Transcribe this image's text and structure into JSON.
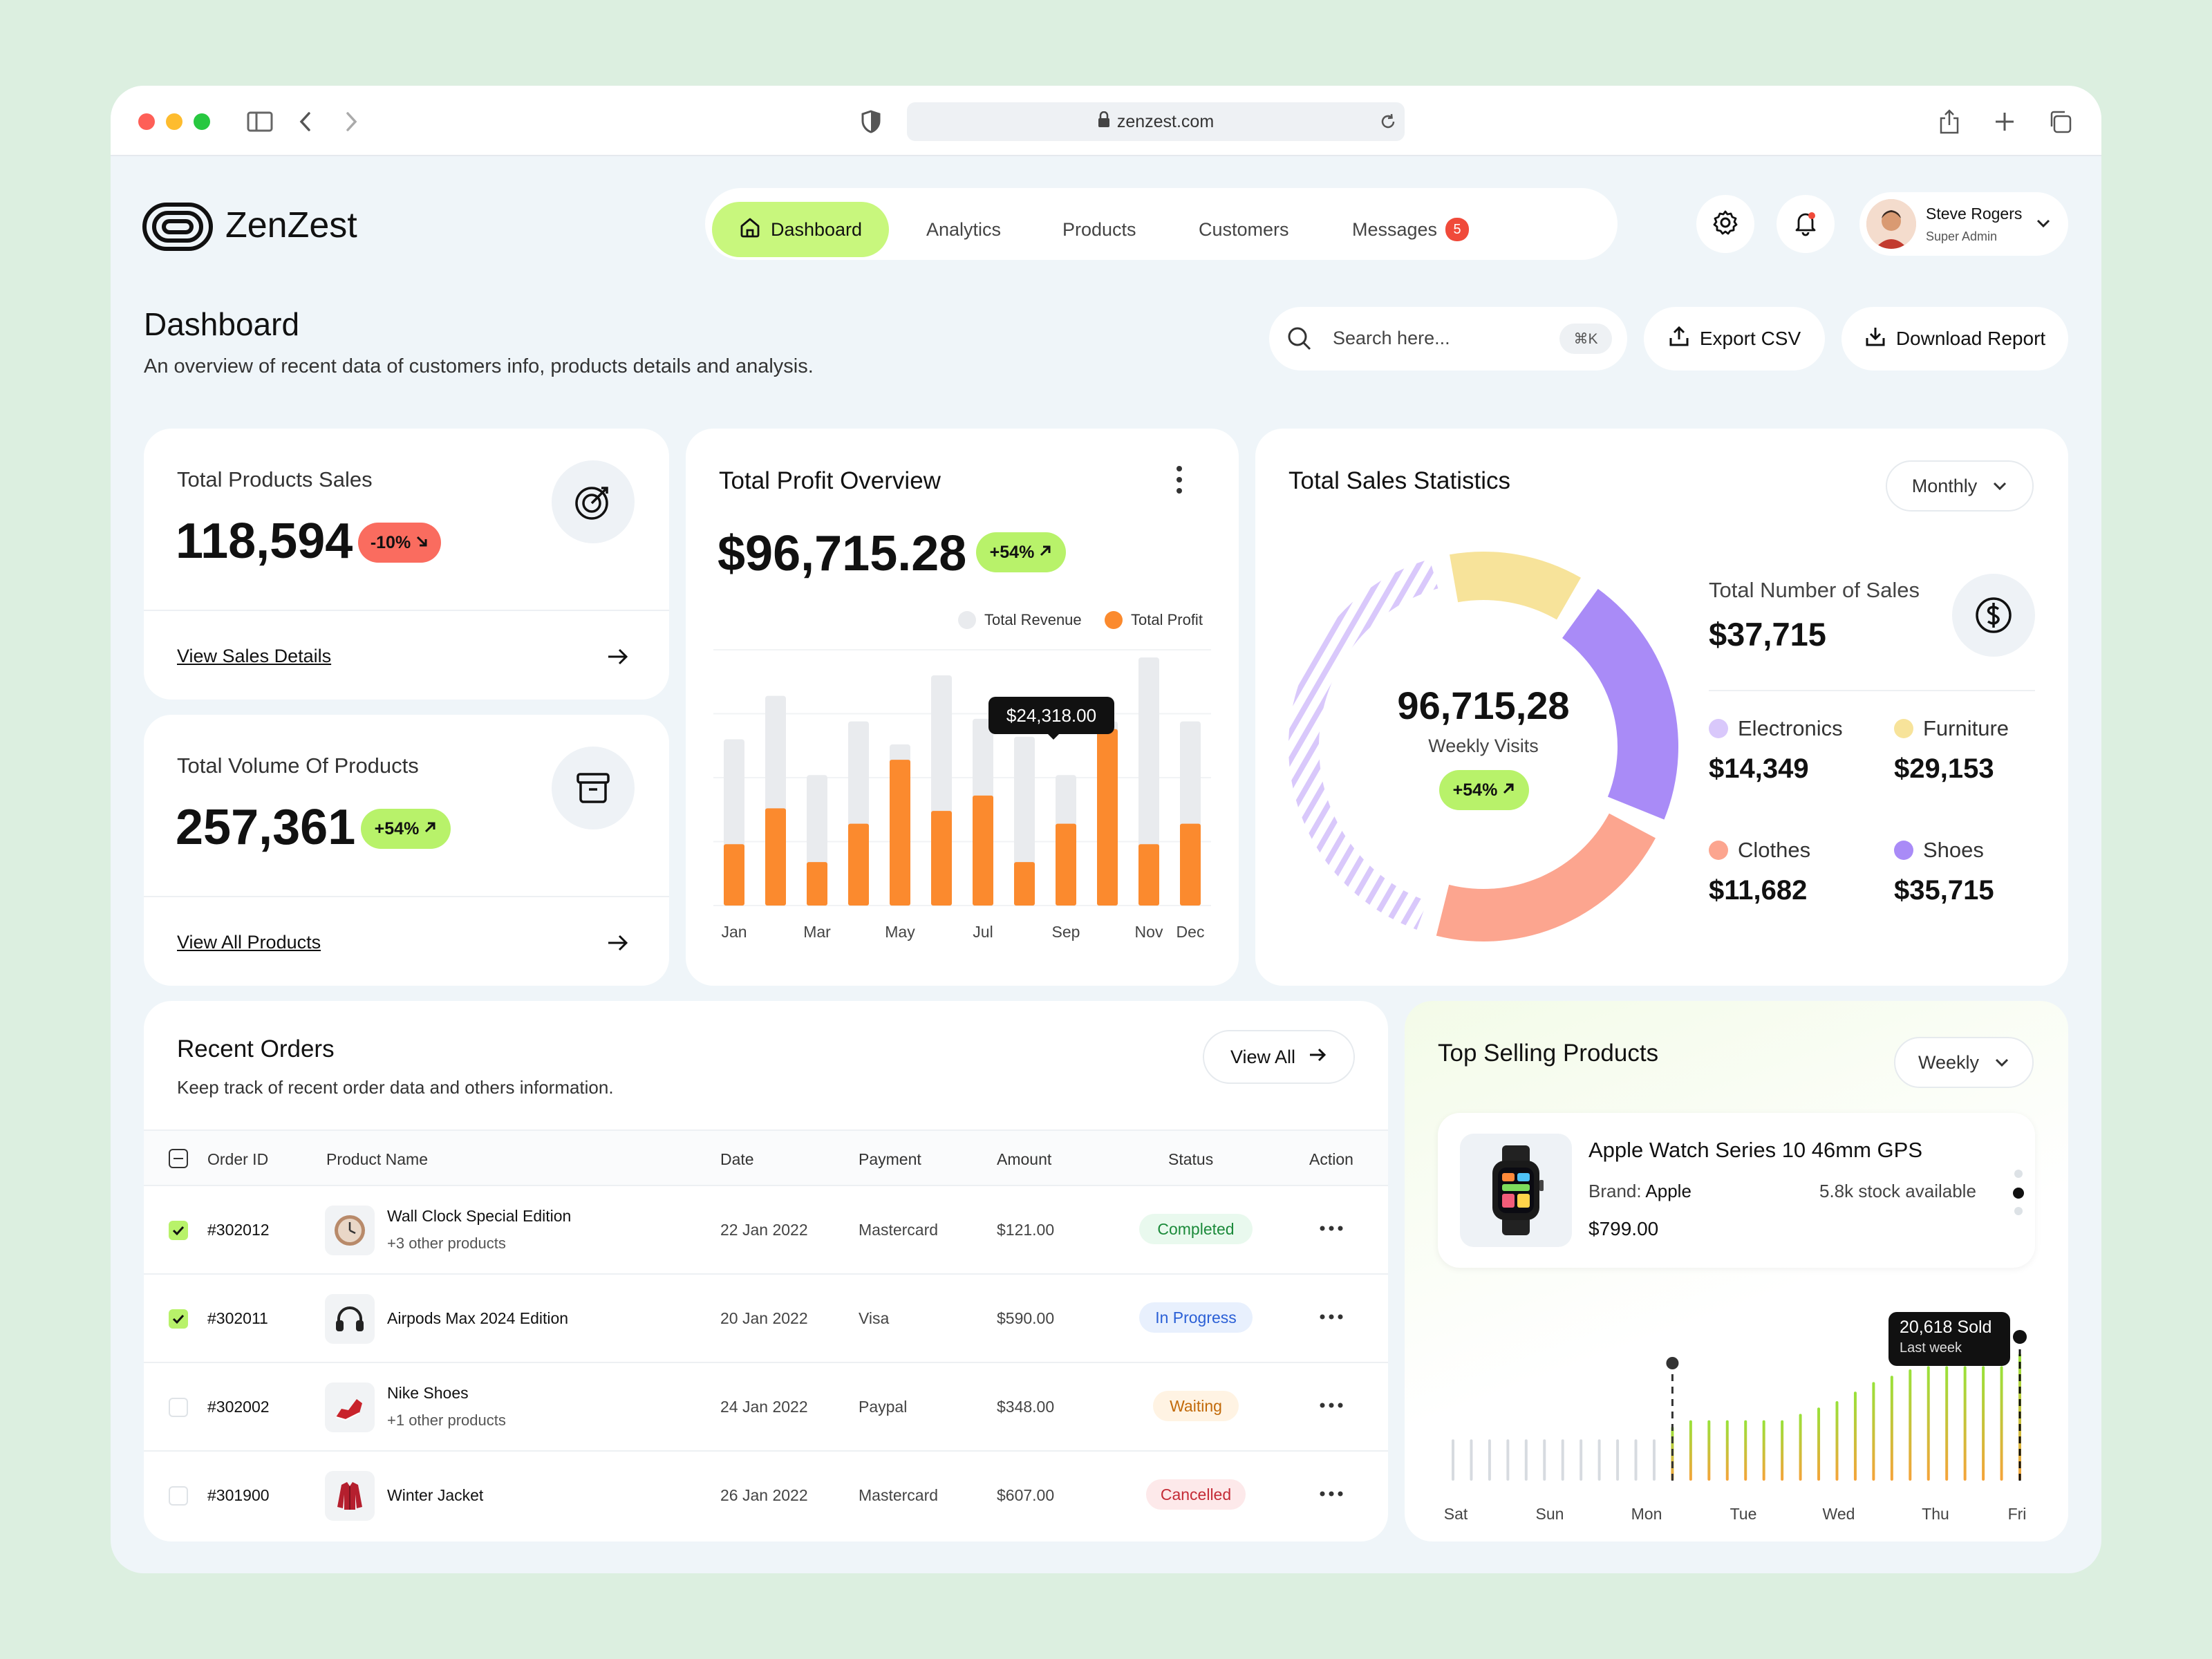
{
  "browser": {
    "url": "zenzest.com"
  },
  "app": {
    "brand": "ZenZest"
  },
  "nav": {
    "tabs": [
      "Dashboard",
      "Analytics",
      "Products",
      "Customers",
      "Messages"
    ],
    "messages_count": "5",
    "user_name": "Steve Rogers",
    "user_role": "Super Admin"
  },
  "header": {
    "title": "Dashboard",
    "subtitle": "An overview of recent data of customers info, products details and analysis.",
    "search_placeholder": "Search here...",
    "search_shortcut": "⌘K",
    "export_label": "Export CSV",
    "download_label": "Download Report"
  },
  "sales_card": {
    "title": "Total Products Sales",
    "value": "118,594",
    "badge": "-10%",
    "link": "View Sales Details"
  },
  "volume_card": {
    "title": "Total Volume Of Products",
    "value": "257,361",
    "badge": "+54%",
    "link": "View All Products"
  },
  "profit": {
    "title": "Total Profit Overview",
    "value": "$96,715.28",
    "badge": "+54%",
    "legend_revenue": "Total Revenue",
    "legend_profit": "Total Profit",
    "tooltip": "$24,318.00",
    "colors": {
      "profit": "#fb8a2e",
      "revenue": "#e9ebee"
    }
  },
  "chart_data": {
    "type": "bar",
    "categories": [
      "Jan",
      "Feb",
      "Mar",
      "Apr",
      "May",
      "Jun",
      "Jul",
      "Aug",
      "Sep",
      "Oct",
      "Nov",
      "Dec"
    ],
    "tick_labels": [
      "Jan",
      "Mar",
      "May",
      "Jul",
      "Sep",
      "Nov",
      "Dec"
    ],
    "series": [
      {
        "name": "Total Revenue",
        "values": [
          65,
          82,
          51,
          72,
          63,
          90,
          73,
          66,
          51,
          72,
          97,
          72
        ]
      },
      {
        "name": "Total Profit",
        "values": [
          24,
          38,
          17,
          32,
          57,
          37,
          43,
          17,
          32,
          69,
          24,
          32
        ]
      }
    ],
    "ylim": [
      0,
      100
    ]
  },
  "stats": {
    "title": "Total Sales Statistics",
    "period": "Monthly",
    "center_value": "96,715,28",
    "center_label": "Weekly Visits",
    "center_badge": "+54%",
    "total_label": "Total Number of Sales",
    "total_value": "$37,715",
    "items": [
      {
        "name": "Electronics",
        "value": "$14,349",
        "color": "#d9c8fb"
      },
      {
        "name": "Furniture",
        "value": "$29,153",
        "color": "#f7e39a"
      },
      {
        "name": "Clothes",
        "value": "$11,682",
        "color": "#fca58f"
      },
      {
        "name": "Shoes",
        "value": "$35,715",
        "color": "#a98bf7"
      }
    ]
  },
  "orders": {
    "title": "Recent Orders",
    "subtitle": "Keep track of recent order data and others information.",
    "view_all": "View All",
    "headers": [
      "Order ID",
      "Product Name",
      "Date",
      "Payment",
      "Amount",
      "Status",
      "Action"
    ],
    "rows": [
      {
        "id": "#302012",
        "product": "Wall Clock Special Edition",
        "sub": "+3 other products",
        "date": "22 Jan 2022",
        "payment": "Mastercard",
        "amount": "$121.00",
        "status": "Completed"
      },
      {
        "id": "#302011",
        "product": "Airpods Max 2024 Edition",
        "sub": "",
        "date": "20 Jan 2022",
        "payment": "Visa",
        "amount": "$590.00",
        "status": "In Progress"
      },
      {
        "id": "#302002",
        "product": "Nike Shoes",
        "sub": "+1 other products",
        "date": "24 Jan 2022",
        "payment": "Paypal",
        "amount": "$348.00",
        "status": "Waiting"
      },
      {
        "id": "#301900",
        "product": "Winter Jacket",
        "sub": "",
        "date": "26 Jan 2022",
        "payment": "Mastercard",
        "amount": "$607.00",
        "status": "Cancelled"
      }
    ]
  },
  "top": {
    "title": "Top Selling Products",
    "period": "Weekly",
    "product_name": "Apple Watch Series 10 46mm GPS",
    "brand_label": "Brand:",
    "brand": "Apple",
    "stock": "5.8k stock available",
    "price": "$799.00",
    "tooltip_value": "20,618 Sold",
    "tooltip_sub": "Last week",
    "days": [
      "Sat",
      "Sun",
      "Mon",
      "Tue",
      "Wed",
      "Thu",
      "Fri"
    ]
  },
  "top_chart": {
    "type": "bar",
    "values": [
      0.26,
      0.26,
      0.26,
      0.26,
      0.26,
      0.26,
      0.26,
      0.26,
      0.26,
      0.26,
      0.26,
      0.26,
      0.34,
      0.38,
      0.38,
      0.38,
      0.38,
      0.38,
      0.38,
      0.42,
      0.46,
      0.5,
      0.56,
      0.62,
      0.66,
      0.7,
      0.72,
      0.72,
      0.72,
      0.72,
      0.72,
      0.8
    ]
  }
}
